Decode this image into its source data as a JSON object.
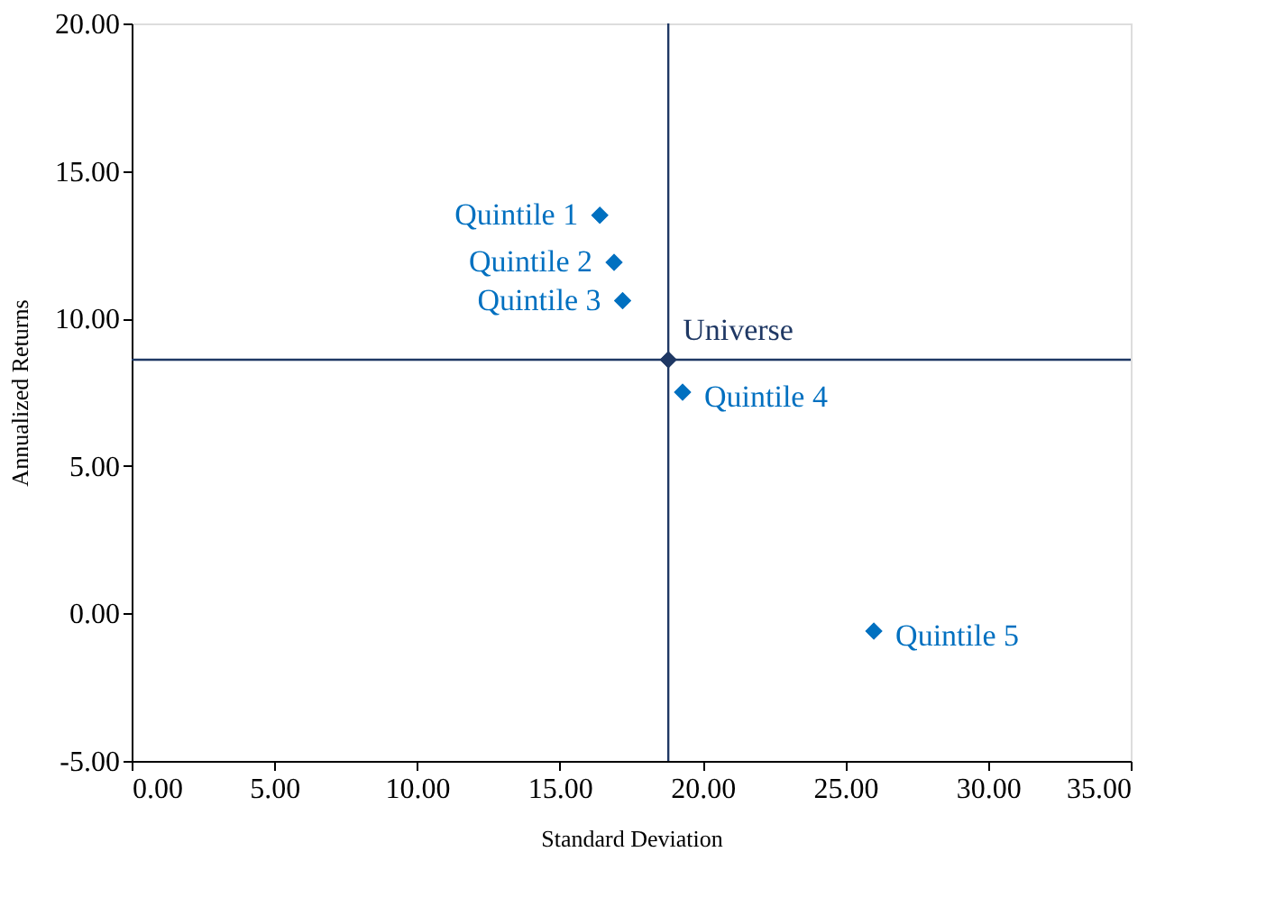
{
  "chart_data": {
    "type": "scatter",
    "xlabel": "Standard Deviation",
    "ylabel": "Annualized Returns",
    "marker": "diamond",
    "grid": false,
    "xlim": [
      0,
      35
    ],
    "ylim": [
      -5,
      20
    ],
    "xticks": [
      {
        "value": 0,
        "label": "0.00"
      },
      {
        "value": 5,
        "label": "5.00"
      },
      {
        "value": 10,
        "label": "10.00"
      },
      {
        "value": 15,
        "label": "15.00"
      },
      {
        "value": 20,
        "label": "20.00"
      },
      {
        "value": 25,
        "label": "25.00"
      },
      {
        "value": 30,
        "label": "30.00"
      },
      {
        "value": 35,
        "label": "35.00"
      }
    ],
    "yticks": [
      {
        "value": -5,
        "label": "-5.00"
      },
      {
        "value": 0,
        "label": "0.00"
      },
      {
        "value": 5,
        "label": "5.00"
      },
      {
        "value": 10,
        "label": "10.00"
      },
      {
        "value": 15,
        "label": "15.00"
      },
      {
        "value": 20,
        "label": "20.00"
      }
    ],
    "series": [
      {
        "name": "Quintile 1",
        "color": "#0070c0",
        "x": [
          16.4
        ],
        "values": [
          13.5
        ]
      },
      {
        "name": "Quintile 2",
        "color": "#0070c0",
        "x": [
          16.9
        ],
        "values": [
          11.9
        ]
      },
      {
        "name": "Quintile 3",
        "color": "#0070c0",
        "x": [
          17.2
        ],
        "values": [
          10.6
        ]
      },
      {
        "name": "Universe",
        "color": "#1f3864",
        "x": [
          18.8
        ],
        "values": [
          8.6
        ]
      },
      {
        "name": "Quintile 4",
        "color": "#0070c0",
        "x": [
          19.3
        ],
        "values": [
          7.5
        ]
      },
      {
        "name": "Quintile 5",
        "color": "#0070c0",
        "x": [
          26.0
        ],
        "values": [
          -0.6
        ]
      }
    ],
    "ref_lines": [
      {
        "axis": "x",
        "value": 18.8,
        "color": "#1f3864"
      },
      {
        "axis": "y",
        "value": 8.6,
        "color": "#1f3864"
      }
    ]
  }
}
